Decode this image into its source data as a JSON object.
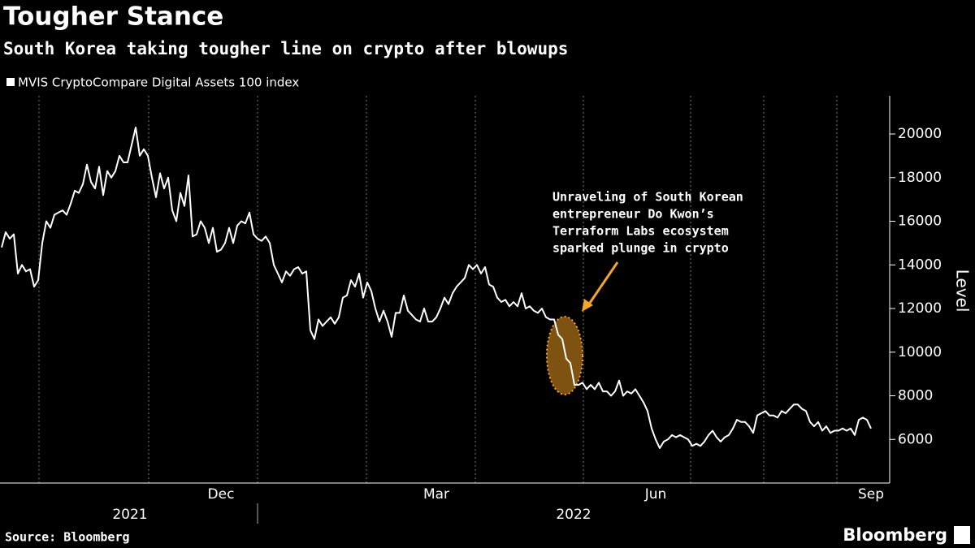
{
  "chart_data": {
    "type": "line",
    "title": "Tougher Stance",
    "subtitle": "South Korea taking tougher line on crypto after blowups",
    "y_axis_label": "Level",
    "source": "Source: Bloomberg",
    "brand": "Bloomberg",
    "annotation": [
      "Unraveling of South Korean",
      "entrepreneur Do Kwon’s",
      "Terraform Labs ecosystem",
      "sparked plunge in crypto"
    ],
    "year_labels": [
      "2021",
      "2022"
    ],
    "ylim": [
      4000,
      21750
    ],
    "yticks": [
      6000,
      8000,
      10000,
      12000,
      14000,
      16000,
      18000,
      20000
    ],
    "legend": "top-left",
    "categories": [
      null,
      null,
      null,
      null,
      null,
      null,
      null,
      null,
      null,
      null,
      null,
      null,
      null,
      null,
      null,
      null,
      null,
      null,
      null,
      null,
      null,
      null,
      null,
      null,
      null,
      null,
      null,
      null,
      null,
      null,
      null,
      null,
      null,
      null,
      null,
      null,
      null,
      null,
      null,
      null,
      null,
      null,
      null,
      null,
      null,
      null,
      null,
      null,
      null,
      null,
      null,
      null,
      null,
      null,
      "Dec",
      null,
      null,
      null,
      null,
      null,
      null,
      null,
      null,
      null,
      null,
      null,
      null,
      null,
      null,
      null,
      null,
      null,
      null,
      null,
      null,
      null,
      null,
      null,
      null,
      null,
      null,
      null,
      null,
      null,
      null,
      null,
      null,
      null,
      null,
      null,
      null,
      null,
      null,
      null,
      null,
      null,
      null,
      null,
      null,
      null,
      null,
      null,
      null,
      null,
      null,
      null,
      null,
      "Mar",
      null,
      null,
      null,
      null,
      null,
      null,
      null,
      null,
      null,
      null,
      null,
      null,
      null,
      null,
      null,
      null,
      null,
      null,
      null,
      null,
      null,
      null,
      null,
      null,
      null,
      null,
      null,
      null,
      null,
      null,
      null,
      null,
      null,
      null,
      null,
      null,
      null,
      null,
      null,
      null,
      null,
      null,
      null,
      null,
      null,
      null,
      null,
      null,
      null,
      null,
      null,
      null,
      null,
      "Jun",
      null,
      null,
      null,
      null,
      null,
      null,
      null,
      null,
      null,
      null,
      null,
      null,
      null,
      null,
      null,
      null,
      null,
      null,
      null,
      null,
      null,
      null,
      null,
      null,
      null,
      null,
      null,
      null,
      null,
      null,
      null,
      null,
      null,
      null,
      null,
      null,
      null,
      null,
      null,
      null,
      null,
      null,
      null,
      null,
      null,
      null,
      null,
      null,
      null,
      null,
      null,
      null,
      "Sep"
    ],
    "series": [
      {
        "name": "MVIS CryptoCompare Digital Assets 100 index",
        "color": "#ffffff",
        "values": [
          14800,
          15500,
          15200,
          15400,
          13600,
          14000,
          13700,
          13800,
          13000,
          13300,
          15000,
          16000,
          15700,
          16300,
          16400,
          16500,
          16300,
          16800,
          17400,
          17300,
          17700,
          18600,
          17800,
          17500,
          18500,
          17200,
          18300,
          18000,
          18300,
          19000,
          18700,
          18700,
          19500,
          20300,
          19000,
          19300,
          19000,
          18000,
          17100,
          18200,
          17500,
          18000,
          16500,
          16000,
          17300,
          16700,
          18100,
          15300,
          15400,
          16000,
          15700,
          15000,
          15700,
          14600,
          14700,
          15000,
          15700,
          15000,
          15800,
          16000,
          15900,
          16400,
          15400,
          15200,
          15100,
          15300,
          15000,
          14000,
          13600,
          13200,
          13700,
          13500,
          13800,
          13900,
          13600,
          13700,
          11000,
          10600,
          11500,
          11200,
          11400,
          11600,
          11300,
          11600,
          12500,
          12600,
          13300,
          13000,
          13600,
          12500,
          13200,
          12800,
          12000,
          11400,
          11900,
          11400,
          10700,
          11800,
          11800,
          12600,
          11900,
          11700,
          11500,
          11400,
          12000,
          11400,
          11400,
          11600,
          12000,
          12500,
          12200,
          12700,
          13000,
          13200,
          13400,
          14000,
          13800,
          14000,
          13600,
          13900,
          13100,
          13000,
          12500,
          12300,
          12400,
          12100,
          12300,
          12100,
          12700,
          12000,
          12100,
          11900,
          11800,
          12000,
          11600,
          11500,
          11500,
          10800,
          10600,
          9700,
          9500,
          8500,
          8500,
          8600,
          8300,
          8500,
          8300,
          8600,
          8200,
          8200,
          8000,
          8200,
          8700,
          8000,
          8200,
          8100,
          8300,
          8000,
          7700,
          7300,
          6500,
          6000,
          5600,
          5900,
          6000,
          6200,
          6100,
          6200,
          6100,
          6000,
          5700,
          5800,
          5700,
          5900,
          6200,
          6400,
          6100,
          5900,
          6100,
          6200,
          6500,
          6900,
          6800,
          6800,
          6600,
          6300,
          7100,
          7200,
          7300,
          7100,
          7100,
          7000,
          7300,
          7200,
          7400,
          7600,
          7600,
          7400,
          7300,
          6800,
          6600,
          6800,
          6400,
          6600,
          6300,
          6400,
          6400,
          6500,
          6400,
          6500,
          6200,
          6900,
          7000,
          6900,
          6500
        ]
      }
    ]
  }
}
